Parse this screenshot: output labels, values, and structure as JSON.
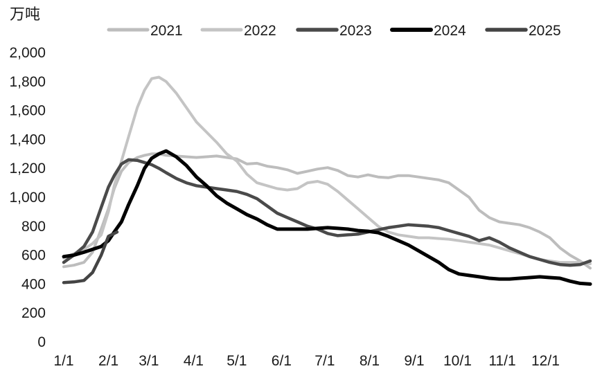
{
  "chart_data": {
    "type": "line",
    "unit_label": "万吨",
    "ylim": [
      0,
      2000
    ],
    "y_ticks": [
      {
        "value": 0,
        "label": "0"
      },
      {
        "value": 200,
        "label": "200"
      },
      {
        "value": 400,
        "label": "400"
      },
      {
        "value": 600,
        "label": "600"
      },
      {
        "value": 800,
        "label": "800"
      },
      {
        "value": 1000,
        "label": "1,000"
      },
      {
        "value": 1200,
        "label": "1,200"
      },
      {
        "value": 1400,
        "label": "1,400"
      },
      {
        "value": 1600,
        "label": "1,600"
      },
      {
        "value": 1800,
        "label": "1,800"
      },
      {
        "value": 2000,
        "label": "2,000"
      }
    ],
    "xlim": [
      0,
      365
    ],
    "x_ticks": [
      {
        "day": 0,
        "label": "1/1"
      },
      {
        "day": 31,
        "label": "2/1"
      },
      {
        "day": 59,
        "label": "3/1"
      },
      {
        "day": 90,
        "label": "4/1"
      },
      {
        "day": 120,
        "label": "5/1"
      },
      {
        "day": 151,
        "label": "6/1"
      },
      {
        "day": 181,
        "label": "7/1"
      },
      {
        "day": 212,
        "label": "8/1"
      },
      {
        "day": 243,
        "label": "9/1"
      },
      {
        "day": 273,
        "label": "10/1"
      },
      {
        "day": 304,
        "label": "11/1"
      },
      {
        "day": 334,
        "label": "12/1"
      }
    ],
    "grid": false,
    "legend_position": "top",
    "series": [
      {
        "name": "2021",
        "color": "#bdbdbd",
        "width": 4,
        "points": [
          [
            0,
            520
          ],
          [
            7,
            530
          ],
          [
            14,
            550
          ],
          [
            20,
            620
          ],
          [
            26,
            780
          ],
          [
            31,
            920
          ],
          [
            35,
            1060
          ],
          [
            40,
            1180
          ],
          [
            45,
            1240
          ],
          [
            51,
            1275
          ],
          [
            56,
            1290
          ],
          [
            61,
            1300
          ],
          [
            66,
            1300
          ],
          [
            71,
            1290
          ],
          [
            78,
            1285
          ],
          [
            85,
            1280
          ],
          [
            92,
            1275
          ],
          [
            99,
            1280
          ],
          [
            106,
            1285
          ],
          [
            113,
            1275
          ],
          [
            120,
            1265
          ],
          [
            127,
            1230
          ],
          [
            134,
            1235
          ],
          [
            141,
            1215
          ],
          [
            148,
            1205
          ],
          [
            155,
            1190
          ],
          [
            162,
            1165
          ],
          [
            169,
            1180
          ],
          [
            176,
            1195
          ],
          [
            183,
            1205
          ],
          [
            190,
            1185
          ],
          [
            197,
            1150
          ],
          [
            204,
            1140
          ],
          [
            211,
            1155
          ],
          [
            218,
            1140
          ],
          [
            225,
            1135
          ],
          [
            232,
            1150
          ],
          [
            239,
            1150
          ],
          [
            246,
            1140
          ],
          [
            253,
            1130
          ],
          [
            260,
            1120
          ],
          [
            267,
            1100
          ],
          [
            274,
            1050
          ],
          [
            281,
            1000
          ],
          [
            288,
            910
          ],
          [
            295,
            860
          ],
          [
            302,
            830
          ],
          [
            309,
            820
          ],
          [
            316,
            810
          ],
          [
            323,
            790
          ],
          [
            330,
            760
          ],
          [
            337,
            720
          ],
          [
            344,
            650
          ],
          [
            351,
            600
          ],
          [
            358,
            560
          ],
          [
            365,
            510
          ]
        ]
      },
      {
        "name": "2022",
        "color": "#c4c4c4",
        "width": 4,
        "points": [
          [
            0,
            580
          ],
          [
            7,
            610
          ],
          [
            14,
            640
          ],
          [
            20,
            680
          ],
          [
            26,
            740
          ],
          [
            31,
            900
          ],
          [
            35,
            1080
          ],
          [
            40,
            1250
          ],
          [
            45,
            1420
          ],
          [
            51,
            1620
          ],
          [
            56,
            1740
          ],
          [
            61,
            1820
          ],
          [
            66,
            1830
          ],
          [
            71,
            1800
          ],
          [
            78,
            1720
          ],
          [
            85,
            1620
          ],
          [
            92,
            1520
          ],
          [
            99,
            1450
          ],
          [
            106,
            1380
          ],
          [
            113,
            1300
          ],
          [
            120,
            1250
          ],
          [
            127,
            1160
          ],
          [
            134,
            1100
          ],
          [
            141,
            1080
          ],
          [
            148,
            1060
          ],
          [
            155,
            1050
          ],
          [
            162,
            1060
          ],
          [
            169,
            1100
          ],
          [
            176,
            1110
          ],
          [
            183,
            1090
          ],
          [
            190,
            1040
          ],
          [
            197,
            980
          ],
          [
            204,
            920
          ],
          [
            211,
            860
          ],
          [
            218,
            800
          ],
          [
            225,
            760
          ],
          [
            232,
            740
          ],
          [
            239,
            730
          ],
          [
            246,
            720
          ],
          [
            253,
            720
          ],
          [
            260,
            715
          ],
          [
            267,
            710
          ],
          [
            274,
            700
          ],
          [
            281,
            690
          ],
          [
            288,
            680
          ],
          [
            295,
            670
          ],
          [
            302,
            650
          ],
          [
            309,
            630
          ],
          [
            316,
            610
          ],
          [
            323,
            590
          ],
          [
            330,
            570
          ],
          [
            337,
            560
          ],
          [
            344,
            550
          ],
          [
            351,
            550
          ],
          [
            358,
            550
          ],
          [
            365,
            540
          ]
        ]
      },
      {
        "name": "2023",
        "color": "#4a4a4a",
        "width": 4.5,
        "points": [
          [
            0,
            550
          ],
          [
            7,
            600
          ],
          [
            14,
            660
          ],
          [
            20,
            760
          ],
          [
            26,
            930
          ],
          [
            31,
            1070
          ],
          [
            35,
            1150
          ],
          [
            40,
            1230
          ],
          [
            45,
            1260
          ],
          [
            51,
            1255
          ],
          [
            56,
            1240
          ],
          [
            61,
            1225
          ],
          [
            66,
            1200
          ],
          [
            71,
            1170
          ],
          [
            78,
            1130
          ],
          [
            85,
            1100
          ],
          [
            92,
            1080
          ],
          [
            99,
            1070
          ],
          [
            106,
            1060
          ],
          [
            113,
            1050
          ],
          [
            120,
            1040
          ],
          [
            127,
            1020
          ],
          [
            134,
            990
          ],
          [
            141,
            940
          ],
          [
            148,
            890
          ],
          [
            155,
            860
          ],
          [
            162,
            830
          ],
          [
            169,
            800
          ],
          [
            176,
            780
          ],
          [
            183,
            750
          ],
          [
            190,
            735
          ],
          [
            197,
            740
          ],
          [
            204,
            745
          ],
          [
            211,
            760
          ],
          [
            218,
            775
          ],
          [
            225,
            790
          ],
          [
            232,
            800
          ],
          [
            239,
            810
          ],
          [
            246,
            805
          ],
          [
            253,
            800
          ],
          [
            260,
            790
          ],
          [
            267,
            770
          ],
          [
            274,
            750
          ],
          [
            281,
            730
          ],
          [
            288,
            700
          ],
          [
            295,
            720
          ],
          [
            302,
            690
          ],
          [
            309,
            650
          ],
          [
            316,
            620
          ],
          [
            323,
            590
          ],
          [
            330,
            570
          ],
          [
            337,
            550
          ],
          [
            344,
            535
          ],
          [
            351,
            530
          ],
          [
            358,
            535
          ],
          [
            365,
            560
          ]
        ]
      },
      {
        "name": "2024",
        "color": "#000000",
        "width": 5,
        "points": [
          [
            0,
            590
          ],
          [
            7,
            600
          ],
          [
            14,
            620
          ],
          [
            20,
            640
          ],
          [
            26,
            660
          ],
          [
            31,
            700
          ],
          [
            35,
            760
          ],
          [
            40,
            830
          ],
          [
            45,
            950
          ],
          [
            51,
            1080
          ],
          [
            56,
            1200
          ],
          [
            61,
            1270
          ],
          [
            66,
            1300
          ],
          [
            71,
            1320
          ],
          [
            78,
            1280
          ],
          [
            85,
            1220
          ],
          [
            92,
            1140
          ],
          [
            99,
            1080
          ],
          [
            106,
            1010
          ],
          [
            113,
            960
          ],
          [
            120,
            920
          ],
          [
            127,
            880
          ],
          [
            134,
            850
          ],
          [
            141,
            810
          ],
          [
            148,
            780
          ],
          [
            155,
            780
          ],
          [
            162,
            780
          ],
          [
            169,
            780
          ],
          [
            176,
            785
          ],
          [
            183,
            790
          ],
          [
            190,
            785
          ],
          [
            197,
            780
          ],
          [
            204,
            770
          ],
          [
            211,
            765
          ],
          [
            218,
            755
          ],
          [
            225,
            730
          ],
          [
            232,
            700
          ],
          [
            239,
            670
          ],
          [
            246,
            630
          ],
          [
            253,
            590
          ],
          [
            260,
            550
          ],
          [
            267,
            500
          ],
          [
            274,
            470
          ],
          [
            281,
            460
          ],
          [
            288,
            450
          ],
          [
            295,
            440
          ],
          [
            302,
            435
          ],
          [
            309,
            435
          ],
          [
            316,
            440
          ],
          [
            323,
            445
          ],
          [
            330,
            450
          ],
          [
            337,
            445
          ],
          [
            344,
            440
          ],
          [
            351,
            420
          ],
          [
            358,
            405
          ],
          [
            365,
            400
          ]
        ]
      },
      {
        "name": "2025",
        "color": "#444444",
        "width": 4.5,
        "points": [
          [
            0,
            410
          ],
          [
            7,
            415
          ],
          [
            14,
            425
          ],
          [
            20,
            480
          ],
          [
            26,
            600
          ],
          [
            31,
            730
          ],
          [
            37,
            760
          ]
        ]
      }
    ]
  }
}
